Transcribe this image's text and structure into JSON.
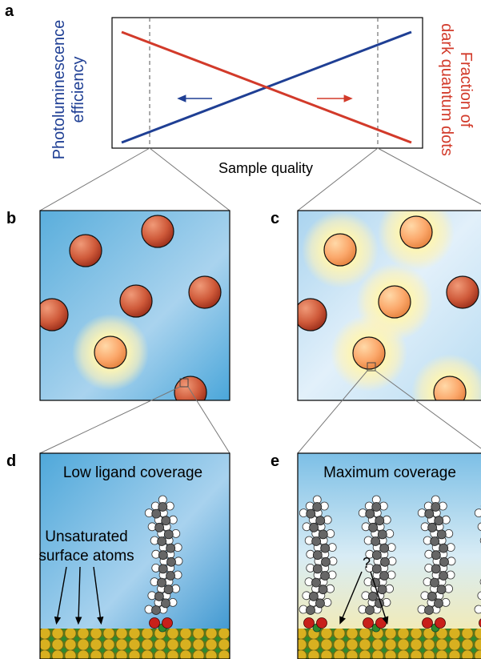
{
  "panel_labels": {
    "a": "a",
    "b": "b",
    "c": "c",
    "d": "d",
    "e": "e"
  },
  "panel_a": {
    "y_left_label": [
      "Photoluminescence",
      "efficiency"
    ],
    "y_right_label": [
      "Fraction of",
      "dark quantum dots"
    ],
    "x_label": "Sample quality"
  },
  "panel_d": {
    "title": "Low ligand coverage",
    "annotation": [
      "Unsaturated",
      "surface atoms"
    ]
  },
  "panel_e": {
    "title": "Maximum coverage",
    "annotation": "?"
  }
}
